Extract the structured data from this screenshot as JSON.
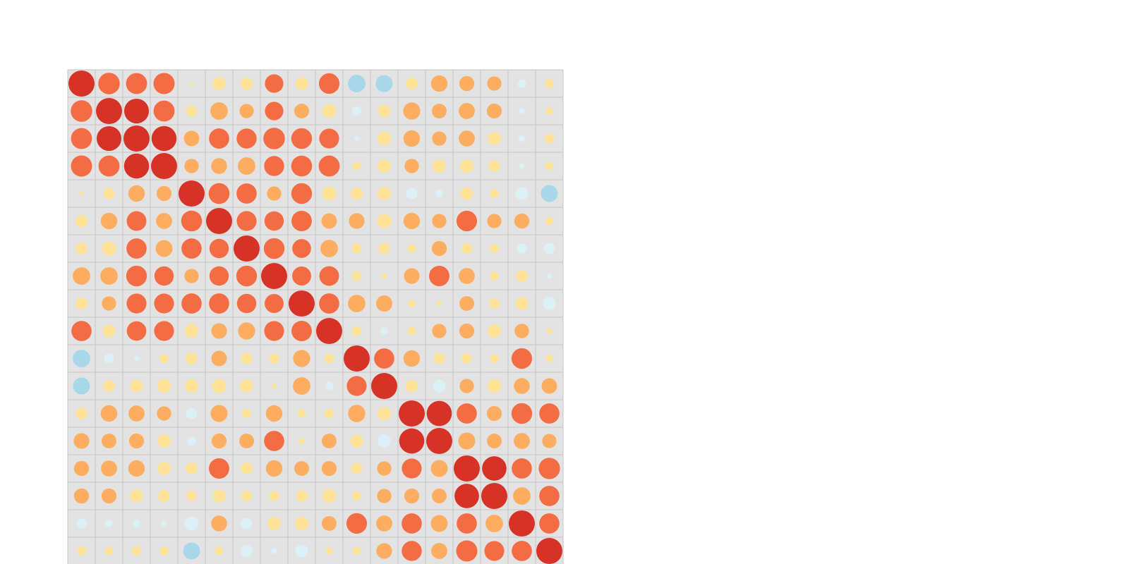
{
  "chart_data": {
    "type": "heatmap",
    "title": "",
    "xlabel": "",
    "ylabel": "",
    "grid": true,
    "legend": "none",
    "value_range": [
      -1,
      1
    ],
    "colors": {
      "panel": "#e3e3e3",
      "gridline": "#c4c4c4",
      "strong_negative": "#a9d7ea",
      "weak_negative": "#dcf0f7",
      "weak_positive": "#fee396",
      "moderate_positive": "#fdad60",
      "strong_positive": "#f46c43",
      "very_strong_positive": "#d73227"
    },
    "matrix": [
      [
        1.0,
        0.68,
        0.65,
        0.66,
        0.02,
        0.25,
        0.22,
        0.5,
        0.24,
        0.62,
        -0.45,
        -0.42,
        0.2,
        0.4,
        0.33,
        0.3,
        -0.1,
        0.12
      ],
      [
        0.68,
        1.0,
        0.9,
        0.65,
        0.18,
        0.45,
        0.3,
        0.5,
        0.32,
        0.28,
        -0.13,
        0.23,
        0.43,
        0.32,
        0.38,
        0.33,
        -0.05,
        0.08
      ],
      [
        0.65,
        0.9,
        1.0,
        0.92,
        0.35,
        0.6,
        0.59,
        0.68,
        0.63,
        0.58,
        -0.04,
        0.27,
        0.4,
        0.3,
        0.38,
        0.24,
        -0.06,
        0.14
      ],
      [
        0.66,
        0.65,
        0.92,
        1.0,
        0.3,
        0.37,
        0.45,
        0.59,
        0.64,
        0.65,
        0.1,
        0.26,
        0.3,
        0.26,
        0.26,
        0.19,
        -0.04,
        0.1
      ],
      [
        0.02,
        0.18,
        0.4,
        0.33,
        1.0,
        0.64,
        0.6,
        0.3,
        0.63,
        0.28,
        0.22,
        0.26,
        -0.18,
        -0.09,
        0.22,
        0.11,
        -0.25,
        -0.42
      ],
      [
        0.22,
        0.4,
        0.57,
        0.38,
        0.64,
        1.0,
        0.58,
        0.55,
        0.61,
        0.35,
        0.36,
        0.28,
        0.4,
        0.3,
        0.62,
        0.3,
        0.33,
        0.09
      ],
      [
        0.2,
        0.29,
        0.6,
        0.42,
        0.6,
        0.55,
        1.0,
        0.63,
        0.52,
        0.45,
        0.15,
        0.19,
        0.1,
        0.33,
        0.17,
        0.11,
        -0.15,
        -0.18
      ],
      [
        0.45,
        0.45,
        0.63,
        0.55,
        0.3,
        0.55,
        0.63,
        1.0,
        0.53,
        0.57,
        0.14,
        0.04,
        0.36,
        0.61,
        0.38,
        0.11,
        0.2,
        -0.04
      ],
      [
        0.2,
        0.3,
        0.58,
        0.58,
        0.6,
        0.6,
        0.55,
        0.53,
        1.0,
        0.6,
        0.45,
        0.39,
        0.08,
        0.04,
        0.32,
        0.15,
        0.24,
        -0.25
      ],
      [
        0.6,
        0.23,
        0.56,
        0.58,
        0.27,
        0.36,
        0.43,
        0.58,
        0.61,
        1.0,
        0.14,
        -0.08,
        0.1,
        0.3,
        0.33,
        0.26,
        0.31,
        0.05
      ],
      [
        -0.45,
        -0.15,
        -0.04,
        0.12,
        0.2,
        0.35,
        0.18,
        0.15,
        0.43,
        0.13,
        1.0,
        0.6,
        0.4,
        0.17,
        0.15,
        0.1,
        0.62,
        0.08
      ],
      [
        -0.42,
        0.2,
        0.23,
        0.27,
        0.27,
        0.29,
        0.25,
        0.03,
        0.45,
        -0.1,
        0.58,
        1.0,
        0.21,
        -0.24,
        0.3,
        0.27,
        0.37,
        0.35
      ],
      [
        0.2,
        0.4,
        0.38,
        0.3,
        -0.17,
        0.42,
        0.12,
        0.4,
        0.1,
        0.13,
        0.44,
        0.25,
        1.0,
        0.93,
        0.6,
        0.33,
        0.63,
        0.6
      ],
      [
        0.36,
        0.32,
        0.33,
        0.26,
        -0.12,
        0.33,
        0.32,
        0.6,
        0.05,
        0.32,
        0.23,
        -0.25,
        0.93,
        1.0,
        0.42,
        0.32,
        0.38,
        0.3
      ],
      [
        0.33,
        0.38,
        0.4,
        0.25,
        0.2,
        0.61,
        0.2,
        0.4,
        0.32,
        0.33,
        0.18,
        0.3,
        0.58,
        0.42,
        1.0,
        0.88,
        0.6,
        0.67
      ],
      [
        0.33,
        0.33,
        0.23,
        0.21,
        0.15,
        0.25,
        0.16,
        0.14,
        0.18,
        0.27,
        0.12,
        0.3,
        0.33,
        0.32,
        0.88,
        1.0,
        0.45,
        0.6
      ],
      [
        -0.14,
        -0.08,
        -0.08,
        -0.05,
        -0.28,
        0.37,
        -0.18,
        0.26,
        0.27,
        0.32,
        0.62,
        0.38,
        0.6,
        0.42,
        0.6,
        0.45,
        1.0,
        0.6
      ],
      [
        0.12,
        0.1,
        0.13,
        0.11,
        -0.42,
        0.1,
        -0.2,
        -0.05,
        -0.24,
        0.07,
        0.09,
        0.36,
        0.59,
        0.38,
        0.66,
        0.58,
        0.6,
        1.0
      ]
    ]
  }
}
